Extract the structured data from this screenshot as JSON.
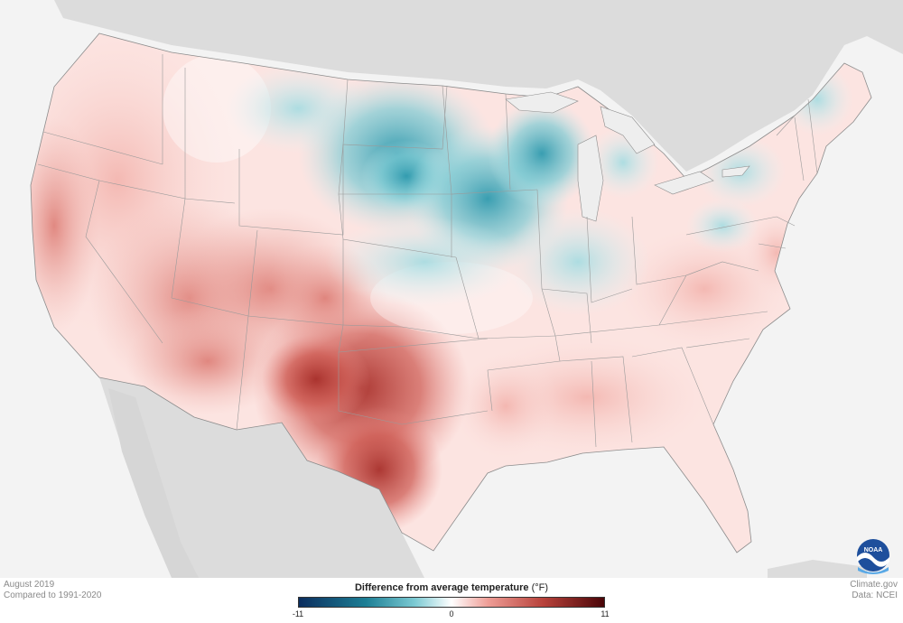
{
  "map": {
    "subject": "Difference from average temperature, contiguous United States",
    "colors": {
      "ocean": "#f3f3f3",
      "land_outside": "#dcdcdc",
      "cold_extreme": "#0b2d5e",
      "cool": "#3fa9b8",
      "neutral": "#ffffff",
      "warm": "#e9908a",
      "hot_extreme": "#4a0508",
      "borders": "#8c8c8c"
    }
  },
  "legend": {
    "title": "Difference from average temperature",
    "unit": "(°F)",
    "min_label": "-11",
    "mid_label": "0",
    "max_label": "11"
  },
  "meta": {
    "period": "August 2019",
    "baseline": "Compared to 1991-2020",
    "credit": "Climate.gov",
    "source": "Data: NCEI"
  },
  "logo": {
    "text": "NOAA",
    "icon": "noaa-logo-icon"
  }
}
